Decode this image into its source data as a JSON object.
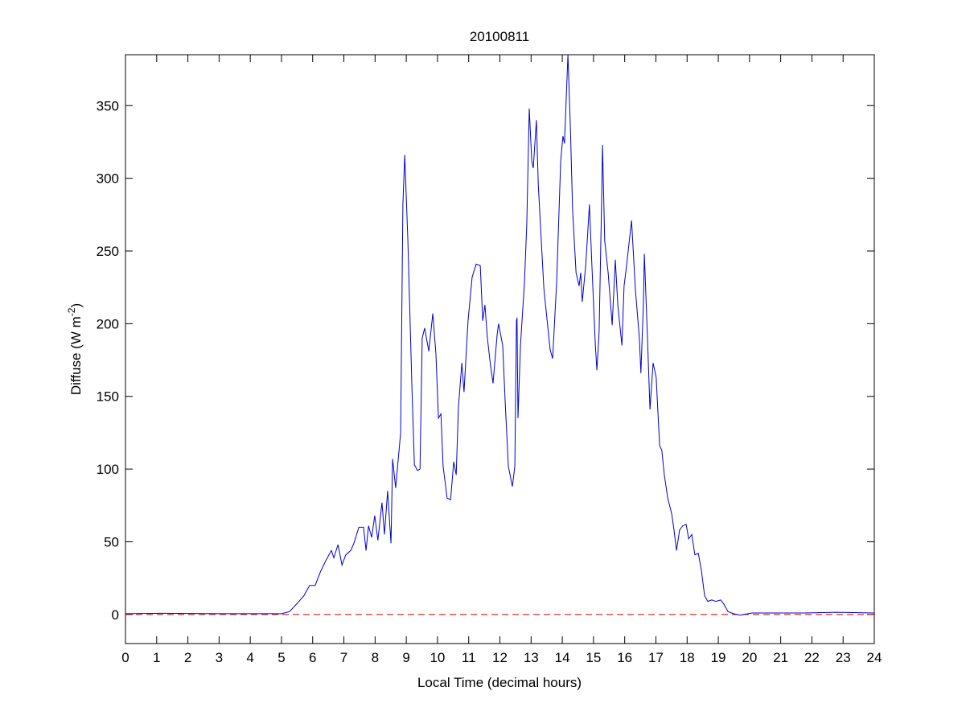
{
  "chart_data": {
    "type": "line",
    "title": "20100811",
    "xlabel": "Local Time (decimal hours)",
    "ylabel": {
      "main": "Diffuse (W m",
      "sup": "-2",
      "close": ")"
    },
    "xlim": [
      0,
      24
    ],
    "ylim": [
      -20,
      385
    ],
    "xticks": [
      0,
      1,
      2,
      3,
      4,
      5,
      6,
      7,
      8,
      9,
      10,
      11,
      12,
      13,
      14,
      15,
      16,
      17,
      18,
      19,
      20,
      21,
      22,
      23,
      24
    ],
    "yticks": [
      0,
      50,
      100,
      150,
      200,
      250,
      300,
      350
    ],
    "grid": false,
    "colors": {
      "series": "#0000cc",
      "reference": "#cc0000"
    },
    "reference_line": {
      "y": 0,
      "style": "dashed"
    },
    "series": [
      {
        "points": [
          [
            0,
            0.5
          ],
          [
            1.2,
            0.8
          ],
          [
            3,
            0.5
          ],
          [
            5.0,
            0.5
          ],
          [
            5.26,
            2
          ],
          [
            5.52,
            8
          ],
          [
            5.72,
            13
          ],
          [
            5.9,
            20
          ],
          [
            6.08,
            20
          ],
          [
            6.24,
            29
          ],
          [
            6.42,
            37
          ],
          [
            6.6,
            44
          ],
          [
            6.68,
            39
          ],
          [
            6.81,
            48
          ],
          [
            6.94,
            34
          ],
          [
            7.06,
            41
          ],
          [
            7.22,
            44
          ],
          [
            7.32,
            49
          ],
          [
            7.48,
            60
          ],
          [
            7.63,
            60
          ],
          [
            7.71,
            44
          ],
          [
            7.79,
            61
          ],
          [
            7.89,
            53
          ],
          [
            7.99,
            68
          ],
          [
            8.09,
            51
          ],
          [
            8.22,
            77
          ],
          [
            8.3,
            55
          ],
          [
            8.4,
            85
          ],
          [
            8.51,
            49
          ],
          [
            8.56,
            107
          ],
          [
            8.66,
            87
          ],
          [
            8.82,
            125
          ],
          [
            8.89,
            282
          ],
          [
            8.95,
            316
          ],
          [
            9.05,
            257
          ],
          [
            9.18,
            157
          ],
          [
            9.26,
            103
          ],
          [
            9.36,
            99
          ],
          [
            9.44,
            100
          ],
          [
            9.51,
            190
          ],
          [
            9.59,
            197
          ],
          [
            9.72,
            181
          ],
          [
            9.85,
            207
          ],
          [
            9.95,
            179
          ],
          [
            10.03,
            135
          ],
          [
            10.11,
            138
          ],
          [
            10.18,
            102
          ],
          [
            10.31,
            80
          ],
          [
            10.42,
            79
          ],
          [
            10.52,
            105
          ],
          [
            10.6,
            96
          ],
          [
            10.67,
            142
          ],
          [
            10.78,
            173
          ],
          [
            10.85,
            153
          ],
          [
            10.98,
            202
          ],
          [
            11.11,
            232
          ],
          [
            11.24,
            241
          ],
          [
            11.37,
            240
          ],
          [
            11.45,
            202
          ],
          [
            11.52,
            213
          ],
          [
            11.6,
            190
          ],
          [
            11.7,
            171
          ],
          [
            11.78,
            159
          ],
          [
            11.91,
            192
          ],
          [
            11.96,
            200
          ],
          [
            12.09,
            185
          ],
          [
            12.17,
            146
          ],
          [
            12.27,
            102
          ],
          [
            12.4,
            88
          ],
          [
            12.48,
            102
          ],
          [
            12.53,
            202
          ],
          [
            12.55,
            204
          ],
          [
            12.58,
            135
          ],
          [
            12.66,
            185
          ],
          [
            12.79,
            229
          ],
          [
            12.86,
            268
          ],
          [
            12.94,
            348
          ],
          [
            13.02,
            312
          ],
          [
            13.07,
            307
          ],
          [
            13.17,
            340
          ],
          [
            13.23,
            296
          ],
          [
            13.3,
            268
          ],
          [
            13.41,
            224
          ],
          [
            13.61,
            182
          ],
          [
            13.69,
            176
          ],
          [
            13.82,
            229
          ],
          [
            13.95,
            312
          ],
          [
            14.02,
            329
          ],
          [
            14.07,
            324
          ],
          [
            14.18,
            385
          ],
          [
            14.26,
            334
          ],
          [
            14.33,
            278
          ],
          [
            14.44,
            235
          ],
          [
            14.54,
            226
          ],
          [
            14.59,
            235
          ],
          [
            14.64,
            215
          ],
          [
            14.75,
            240
          ],
          [
            14.8,
            257
          ],
          [
            14.87,
            282
          ],
          [
            14.95,
            240
          ],
          [
            15.06,
            185
          ],
          [
            15.11,
            168
          ],
          [
            15.18,
            195
          ],
          [
            15.26,
            285
          ],
          [
            15.29,
            323
          ],
          [
            15.36,
            257
          ],
          [
            15.47,
            235
          ],
          [
            15.6,
            199
          ],
          [
            15.7,
            244
          ],
          [
            15.78,
            213
          ],
          [
            15.91,
            185
          ],
          [
            15.98,
            226
          ],
          [
            16.06,
            240
          ],
          [
            16.22,
            271
          ],
          [
            16.34,
            224
          ],
          [
            16.47,
            190
          ],
          [
            16.52,
            166
          ],
          [
            16.6,
            213
          ],
          [
            16.63,
            248
          ],
          [
            16.73,
            190
          ],
          [
            16.81,
            141
          ],
          [
            16.91,
            173
          ],
          [
            17.01,
            163
          ],
          [
            17.12,
            116
          ],
          [
            17.19,
            113
          ],
          [
            17.27,
            96
          ],
          [
            17.38,
            80
          ],
          [
            17.51,
            69
          ],
          [
            17.58,
            58
          ],
          [
            17.66,
            44
          ],
          [
            17.76,
            58
          ],
          [
            17.86,
            61
          ],
          [
            17.97,
            62
          ],
          [
            18.05,
            52
          ],
          [
            18.15,
            55
          ],
          [
            18.25,
            41
          ],
          [
            18.36,
            42
          ],
          [
            18.46,
            30
          ],
          [
            18.56,
            13
          ],
          [
            18.66,
            9
          ],
          [
            18.79,
            10
          ],
          [
            18.92,
            9
          ],
          [
            19.08,
            10
          ],
          [
            19.18,
            7
          ],
          [
            19.31,
            2
          ],
          [
            19.49,
            0.5
          ],
          [
            19.7,
            -0.5
          ],
          [
            20.08,
            1
          ],
          [
            21.76,
            1
          ],
          [
            22.79,
            1.5
          ],
          [
            24,
            1
          ]
        ]
      }
    ]
  }
}
